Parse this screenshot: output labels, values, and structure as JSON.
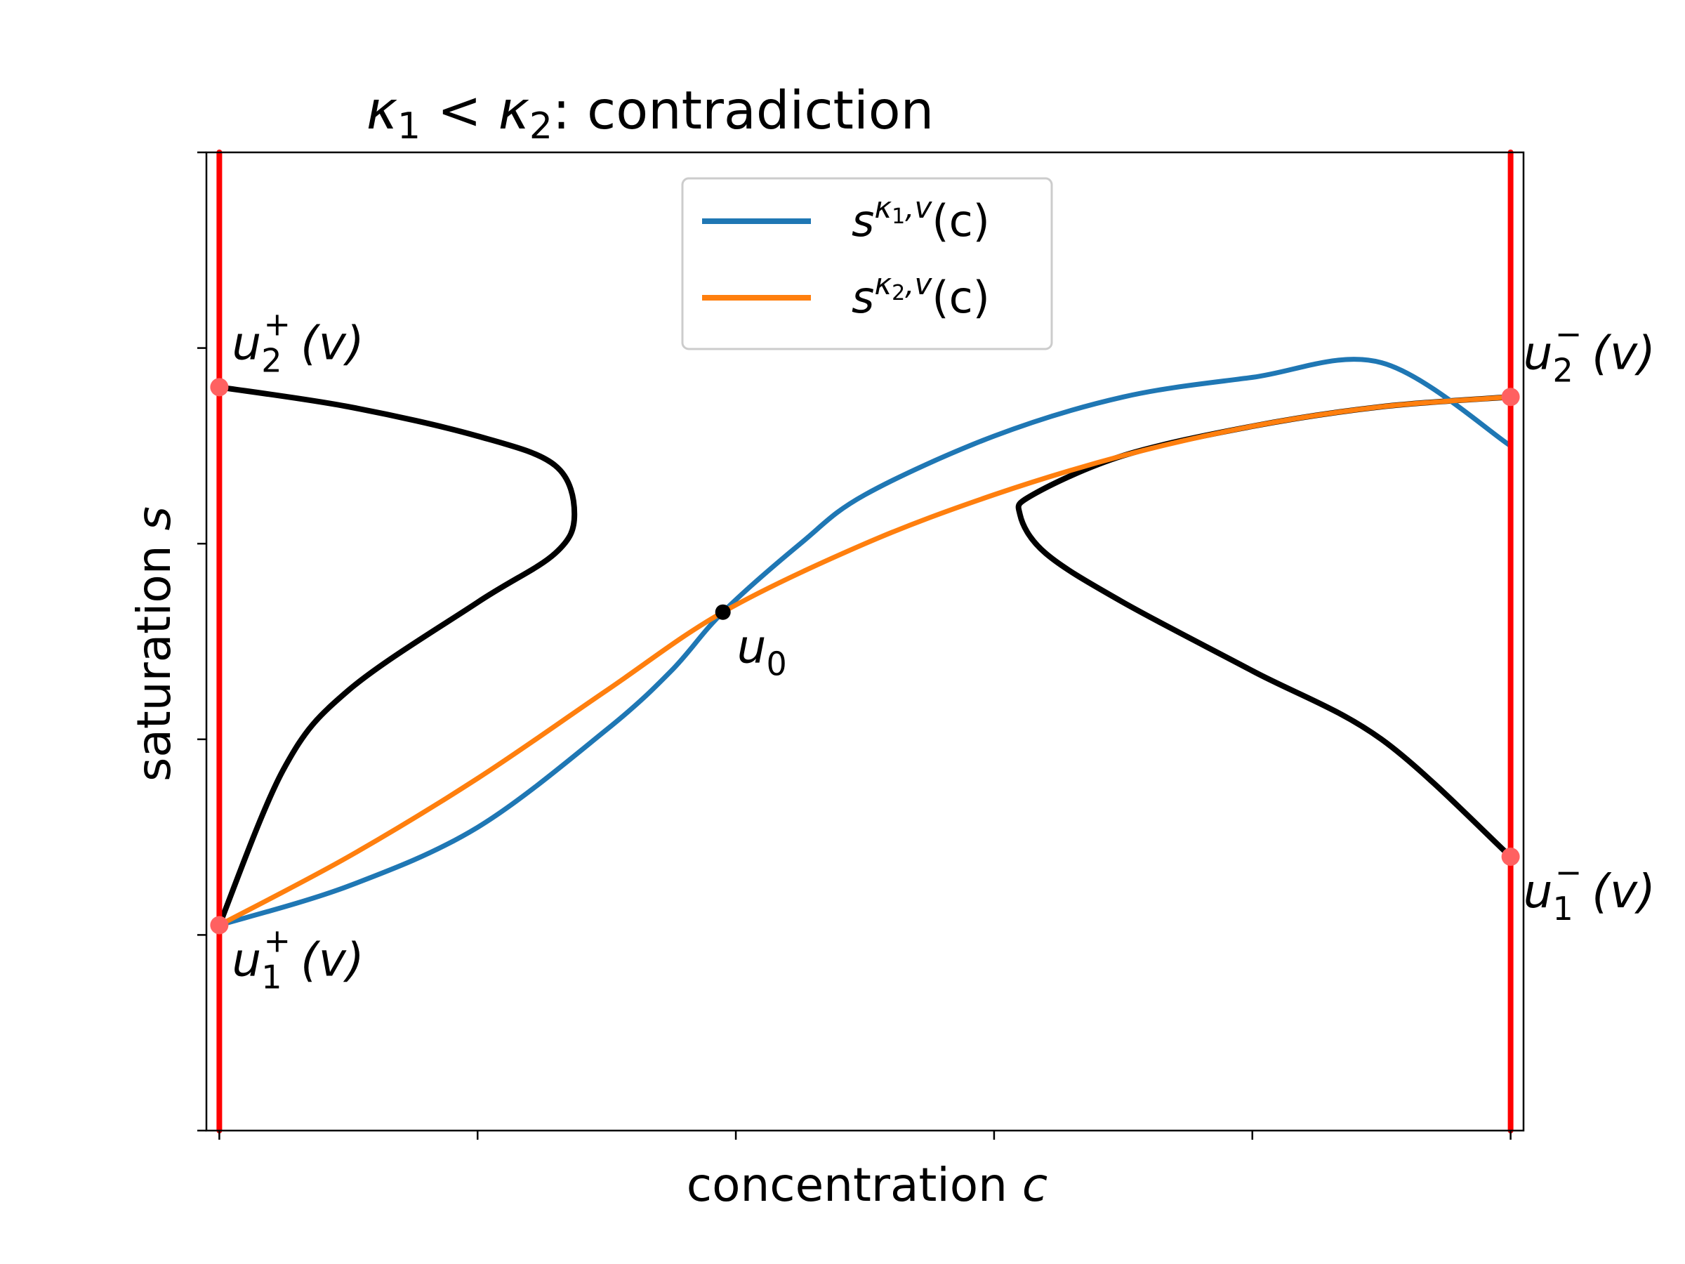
{
  "chart_data": {
    "type": "line",
    "title_parts": {
      "k1": "κ",
      "one": "1",
      "lt": " < ",
      "k2": "κ",
      "two": "2",
      "rest": ": contradiction"
    },
    "xlabel_text": "concentration ",
    "xlabel_var": "c",
    "ylabel_text": "saturation ",
    "ylabel_var": "s",
    "xlim": [
      -0.01,
      1.01
    ],
    "ylim": [
      0,
      1
    ],
    "x_ticks": [
      0,
      0.2,
      0.4,
      0.6,
      0.8,
      1.0
    ],
    "y_ticks": [
      0,
      0.2,
      0.4,
      0.6,
      0.8,
      1.0
    ],
    "tick_labels_shown": false,
    "grid": false,
    "legend_position": "upper center",
    "legend": [
      {
        "series": "s_kappa1",
        "color": "#1f77b4",
        "base": "s",
        "sup1": "κ",
        "sub": "1",
        "sup2": ",v",
        "tail": "(c)"
      },
      {
        "series": "s_kappa2",
        "color": "#ff7f0e",
        "base": "s",
        "sup1": "κ",
        "sub": "2",
        "sup2": ",v",
        "tail": "(c)"
      }
    ],
    "series": {
      "s_kappa1": {
        "color": "#1f77b4",
        "x": [
          0.0,
          0.1,
          0.2,
          0.3,
          0.35,
          0.39,
          0.45,
          0.5,
          0.6,
          0.7,
          0.8,
          0.9,
          1.0
        ],
        "y": [
          0.21,
          0.25,
          0.31,
          0.41,
          0.47,
          0.53,
          0.6,
          0.65,
          0.71,
          0.75,
          0.77,
          0.785,
          0.7
        ]
      },
      "s_kappa2": {
        "color": "#ff7f0e",
        "x": [
          0.0,
          0.1,
          0.2,
          0.3,
          0.39,
          0.5,
          0.6,
          0.7,
          0.8,
          0.9,
          1.0
        ],
        "y": [
          0.21,
          0.28,
          0.36,
          0.45,
          0.53,
          0.6,
          0.65,
          0.69,
          0.72,
          0.74,
          0.75
        ]
      },
      "boundary_left": {
        "color": "#000000",
        "x": [
          0.0,
          0.1,
          0.2,
          0.26,
          0.275,
          0.26,
          0.2,
          0.1,
          0.05,
          0.0
        ],
        "y": [
          0.76,
          0.74,
          0.71,
          0.68,
          0.63,
          0.59,
          0.54,
          0.45,
          0.37,
          0.21
        ]
      },
      "boundary_right": {
        "color": "#000000",
        "x": [
          1.0,
          0.9,
          0.8,
          0.7,
          0.63,
          0.62,
          0.64,
          0.7,
          0.8,
          0.9,
          1.0
        ],
        "y": [
          0.75,
          0.74,
          0.72,
          0.69,
          0.65,
          0.63,
          0.59,
          0.54,
          0.47,
          0.4,
          0.28
        ]
      },
      "wall_left": {
        "color": "#ff0000",
        "x": [
          0.0,
          0.0
        ],
        "y": [
          0.0,
          1.0
        ]
      },
      "wall_right": {
        "color": "#ff0000",
        "x": [
          1.0,
          1.0
        ],
        "y": [
          0.0,
          1.0
        ]
      }
    },
    "points": [
      {
        "id": "u2plus",
        "x": 0.0,
        "y": 0.76,
        "color": "#ff6161",
        "base": "u",
        "sub": "2",
        "sup": "+",
        "tail": "(v)",
        "anchor": "right-above"
      },
      {
        "id": "u1plus",
        "x": 0.0,
        "y": 0.21,
        "color": "#ff6161",
        "base": "u",
        "sub": "1",
        "sup": "+",
        "tail": "(v)",
        "anchor": "right-below"
      },
      {
        "id": "u2minus",
        "x": 1.0,
        "y": 0.75,
        "color": "#ff6161",
        "base": "u",
        "sub": "2",
        "sup": "−",
        "tail": "(v)",
        "anchor": "right-above"
      },
      {
        "id": "u1minus",
        "x": 1.0,
        "y": 0.28,
        "color": "#ff6161",
        "base": "u",
        "sub": "1",
        "sup": "−",
        "tail": "(v)",
        "anchor": "right-below"
      },
      {
        "id": "u0",
        "x": 0.39,
        "y": 0.53,
        "color": "#000000",
        "base": "u",
        "sub": "0",
        "sup": "",
        "tail": "",
        "anchor": "right-below"
      }
    ]
  }
}
